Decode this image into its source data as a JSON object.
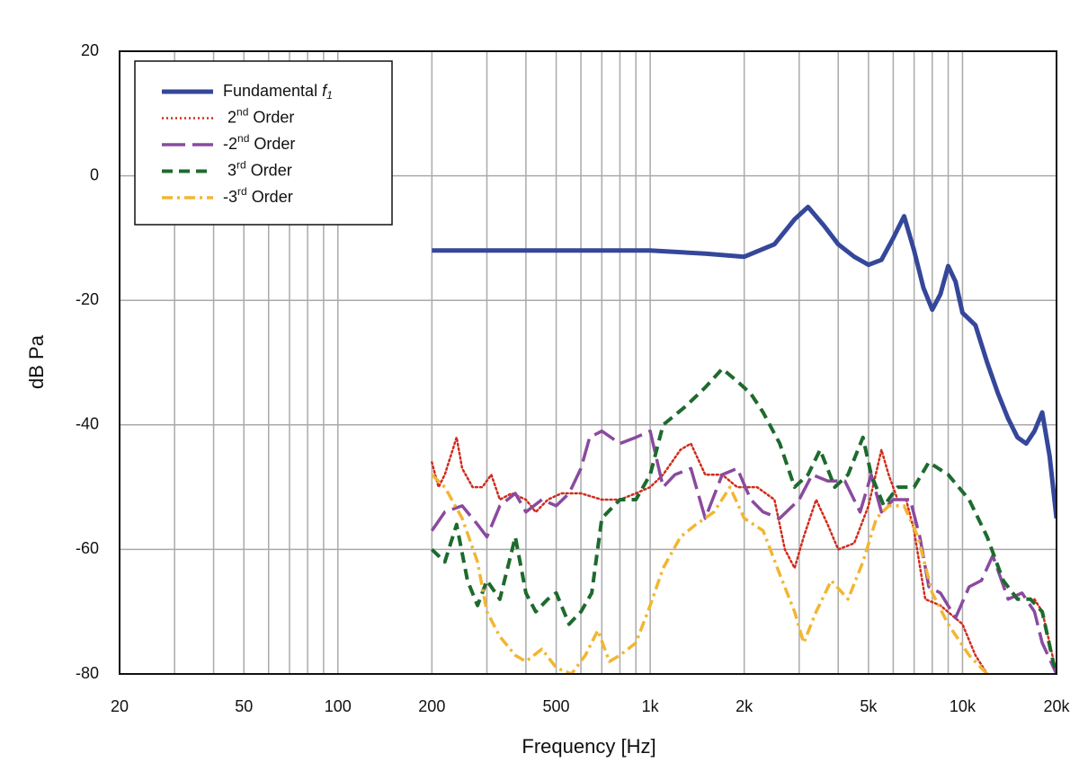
{
  "chart_data": {
    "type": "line",
    "xlabel": "Frequency [Hz]",
    "ylabel": "dB Pa",
    "log_x": true,
    "grid": true,
    "legend": "upper left",
    "xlim": [
      20,
      20000
    ],
    "ylim": [
      -80,
      20
    ],
    "xticks": [
      20,
      50,
      100,
      200,
      500,
      {
        "value": 1000,
        "label": "1k"
      },
      {
        "value": 2000,
        "label": "2k"
      },
      {
        "value": 5000,
        "label": "5k"
      },
      {
        "value": 10000,
        "label": "10k"
      },
      {
        "value": 20000,
        "label": "20k"
      }
    ],
    "x_minor_ticks": [
      30,
      40,
      60,
      70,
      80,
      90,
      300,
      400,
      600,
      700,
      800,
      900,
      3000,
      4000,
      6000,
      7000,
      8000,
      9000
    ],
    "yticks": [
      20,
      0,
      -20,
      -40,
      -60,
      -80
    ],
    "series": [
      {
        "name": "Fundamental f1",
        "color": "#35479a",
        "style": "solid",
        "x": [
          200,
          500,
          1000,
          1500,
          2000,
          2500,
          2900,
          3200,
          3600,
          4000,
          4500,
          5000,
          5500,
          6000,
          6500,
          7000,
          7500,
          8000,
          8500,
          9000,
          9500,
          10000,
          11000,
          12000,
          13000,
          14000,
          15000,
          16000,
          17000,
          18000,
          19000,
          20000
        ],
        "values": [
          -12,
          -12,
          -12,
          -12.5,
          -13,
          -11,
          -7,
          -5,
          -8,
          -11,
          -13,
          -14.3,
          -13.5,
          -10,
          -6.5,
          -12,
          -18,
          -21.5,
          -19,
          -14.5,
          -17,
          -22,
          -24,
          -30,
          -35,
          -39,
          -42,
          -43,
          -41,
          -38,
          -45,
          -55
        ]
      },
      {
        "name": "2nd Order",
        "color": "#d02c1c",
        "style": "dotted",
        "x": [
          200,
          210,
          220,
          240,
          250,
          270,
          290,
          310,
          330,
          360,
          400,
          430,
          470,
          520,
          600,
          700,
          800,
          900,
          1000,
          1100,
          1250,
          1350,
          1500,
          1700,
          1900,
          2200,
          2500,
          2700,
          2900,
          3100,
          3400,
          3700,
          4000,
          4500,
          5000,
          5500,
          5800,
          6200,
          6600,
          7000,
          7600,
          8500,
          10000,
          11000,
          12000,
          15000,
          17000,
          18000,
          19000,
          20000
        ],
        "values": [
          -46,
          -50,
          -48,
          -42,
          -47,
          -50,
          -50,
          -48,
          -52,
          -51,
          -52,
          -54,
          -52,
          -51,
          -51,
          -52,
          -52,
          -51,
          -50,
          -48,
          -44,
          -43,
          -48,
          -48,
          -50,
          -50,
          -52,
          -60,
          -63,
          -58,
          -52,
          -56,
          -60,
          -59,
          -53,
          -44,
          -48,
          -52,
          -52,
          -57,
          -68,
          -69,
          -72,
          -77,
          -80,
          null,
          -68,
          -70,
          -75,
          -80
        ]
      },
      {
        "name": "-2nd Order",
        "color": "#8a4a9e",
        "style": "longdash",
        "x": [
          200,
          220,
          250,
          280,
          300,
          330,
          370,
          400,
          450,
          500,
          550,
          600,
          640,
          700,
          800,
          900,
          1000,
          1100,
          1200,
          1350,
          1500,
          1700,
          1900,
          2100,
          2300,
          2600,
          3000,
          3300,
          3700,
          4200,
          4700,
          5100,
          5500,
          6000,
          6800,
          7300,
          7800,
          8500,
          9500,
          10500,
          11500,
          12500,
          14000,
          15500,
          17000,
          18000,
          20000
        ],
        "values": [
          -57,
          -54,
          -53,
          -56,
          -58,
          -53,
          -51,
          -54,
          -52,
          -53,
          -51,
          -47,
          -42,
          -41,
          -43,
          -42,
          -41,
          -50,
          -48,
          -47,
          -55,
          -48,
          -47,
          -52,
          -54,
          -55,
          -52,
          -48,
          -49,
          -49,
          -54,
          -48,
          -54,
          -52,
          -52,
          -58,
          -66,
          -67,
          -71,
          -66,
          -65,
          -61,
          -68,
          -67,
          -70,
          -75,
          -80
        ]
      },
      {
        "name": "3rd Order",
        "color": "#1e6a2e",
        "style": "dash",
        "x": [
          200,
          220,
          240,
          260,
          280,
          300,
          330,
          370,
          400,
          430,
          470,
          500,
          550,
          600,
          650,
          700,
          800,
          900,
          1000,
          1100,
          1300,
          1500,
          1700,
          1900,
          2100,
          2300,
          2600,
          2900,
          3200,
          3500,
          3900,
          4300,
          4800,
          5100,
          5600,
          6200,
          7000,
          7800,
          9000,
          10500,
          12000,
          13500,
          15000,
          16500,
          18000,
          19500,
          20000
        ],
        "values": [
          -60,
          -62,
          -56,
          -65,
          -69,
          -65,
          -68,
          -58,
          -67,
          -70,
          -68,
          -67,
          -72,
          -70,
          -67,
          -55,
          -52,
          -52,
          -48,
          -40,
          -37,
          -34,
          -31,
          -33,
          -35,
          -38,
          -43,
          -50,
          -48,
          -44,
          -50,
          -48,
          -42,
          -48,
          -53,
          -50,
          -50,
          -46,
          -48,
          -52,
          -58,
          -65,
          -68,
          -68,
          -70,
          -78,
          -80
        ]
      },
      {
        "name": "-3rd Order",
        "color": "#f2b632",
        "style": "dashdot",
        "x": [
          200,
          220,
          250,
          280,
          300,
          330,
          370,
          400,
          450,
          500,
          560,
          620,
          680,
          740,
          800,
          900,
          1000,
          1100,
          1250,
          1400,
          1600,
          1800,
          2000,
          2300,
          2600,
          2900,
          3100,
          3400,
          3800,
          4300,
          4800,
          5300,
          5800,
          6500,
          7200,
          8000,
          9000,
          10500,
          12000
        ],
        "values": [
          -48,
          -50,
          -55,
          -62,
          -70,
          -74,
          -77,
          -78,
          -76,
          -79,
          -80,
          -77,
          -73,
          -78,
          -77,
          -75,
          -69,
          -63,
          -58,
          -56,
          -54,
          -50,
          -55,
          -57,
          -64,
          -70,
          -75,
          -70,
          -65,
          -68,
          -62,
          -55,
          -53,
          -53,
          -58,
          -67,
          -72,
          -77,
          -80
        ]
      }
    ]
  }
}
